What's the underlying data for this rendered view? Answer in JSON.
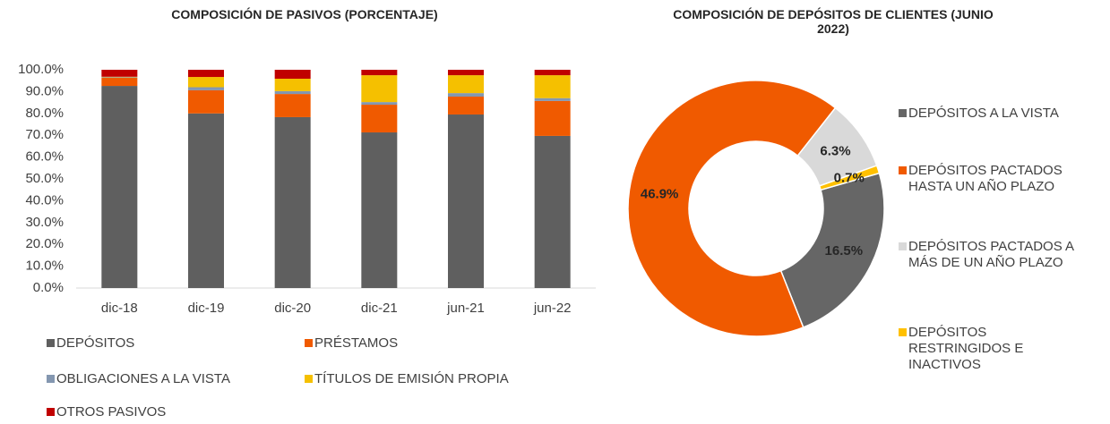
{
  "chart_data": [
    {
      "type": "stacked_bar",
      "title": "COMPOSICIÓN DE PASIVOS  (PORCENTAJE)",
      "categories": [
        "dic-18",
        "dic-19",
        "dic-20",
        "dic-21",
        "jun-21",
        "jun-22"
      ],
      "series": [
        {
          "name": "DEPÓSITOS",
          "color": "#5f5f5f",
          "values": [
            92.6,
            80.0,
            78.3,
            71.3,
            79.5,
            69.7
          ]
        },
        {
          "name": "PRÉSTAMOS",
          "color": "#f05a00",
          "values": [
            3.7,
            10.6,
            10.6,
            12.7,
            8.2,
            16.0
          ]
        },
        {
          "name": "OBLIGACIONES A LA VISTA",
          "color": "#8497b0",
          "values": [
            0.3,
            1.4,
            1.3,
            1.2,
            1.6,
            1.3
          ]
        },
        {
          "name": "TÍTULOS DE EMISIÓN PROPIA",
          "color": "#f5c000",
          "values": [
            0.2,
            4.7,
            5.7,
            12.3,
            8.2,
            10.5
          ]
        },
        {
          "name": "OTROS PASIVOS",
          "color": "#c00000",
          "values": [
            3.2,
            3.3,
            4.1,
            2.5,
            2.5,
            2.5
          ]
        }
      ],
      "ylim": [
        0,
        100
      ],
      "yticks": [
        {
          "value": 0,
          "label": "0.0%"
        },
        {
          "value": 10,
          "label": "10.0%"
        },
        {
          "value": 20,
          "label": "20.0%"
        },
        {
          "value": 30,
          "label": "30.0%"
        },
        {
          "value": 40,
          "label": "40.0%"
        },
        {
          "value": 50,
          "label": "50.0%"
        },
        {
          "value": 60,
          "label": "60.0%"
        },
        {
          "value": 70,
          "label": "70.0%"
        },
        {
          "value": 80,
          "label": "80.0%"
        },
        {
          "value": 90,
          "label": "90.0%"
        },
        {
          "value": 100,
          "label": "100.0%"
        }
      ],
      "legend": "bottom"
    },
    {
      "type": "donut",
      "title": "COMPOSICIÓN DE DEPÓSITOS DE CLIENTES (JUNIO 2022)",
      "categories": [
        "DEPÓSITOS A LA VISTA",
        "DEPÓSITOS PACTADOS HASTA UN AÑO PLAZO",
        "DEPÓSITOS PACTADOS A MÁS DE UN AÑO PLAZO",
        "DEPÓSITOS RESTRINGIDOS E INACTIVOS"
      ],
      "values": [
        16.5,
        46.9,
        6.3,
        0.7
      ],
      "value_labels": [
        "16.5%",
        "46.9%",
        "6.3%",
        "0.7%"
      ],
      "colors": [
        "#666666",
        "#f05a00",
        "#d9d9d9",
        "#ffc000"
      ],
      "legend": "right"
    }
  ]
}
